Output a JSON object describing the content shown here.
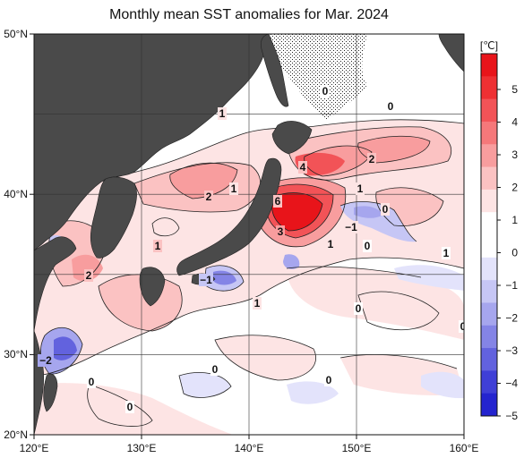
{
  "title": "Monthly mean SST anomalies for Mar. 2024",
  "colorbar": {
    "unit": "[℃]",
    "ticks": [
      "5",
      "4",
      "3",
      "2",
      "1",
      "0",
      "−1",
      "−2",
      "−3",
      "−4",
      "−5"
    ],
    "colors": [
      "#e8141a",
      "#ee3033",
      "#f25357",
      "#f5787a",
      "#f89d9e",
      "#fbc2c2",
      "#fde4e4",
      "#ffffff",
      "#ffffff",
      "#e3e3fb",
      "#c6c6f5",
      "#a6a6ee",
      "#8484e6",
      "#6262de",
      "#3f3fd6",
      "#2424cf"
    ]
  },
  "axes": {
    "lon_labels": [
      "120°E",
      "130°E",
      "140°E",
      "150°E",
      "160°E"
    ],
    "lat_labels": [
      "50°N",
      "40°N",
      "30°N",
      "20°N"
    ]
  },
  "contour_labels": [
    "1",
    "0",
    "0",
    "4",
    "2",
    "6",
    "2",
    "1",
    "1",
    "0",
    "3",
    "−1",
    "1",
    "0",
    "1",
    "2",
    "−1",
    "1",
    "1",
    "0",
    "0",
    "−2",
    "0",
    "0",
    "0",
    "0"
  ],
  "colors": {
    "land": "#4a4a4a",
    "ocean_neutral": "#ffffff",
    "grid": "#333333"
  }
}
